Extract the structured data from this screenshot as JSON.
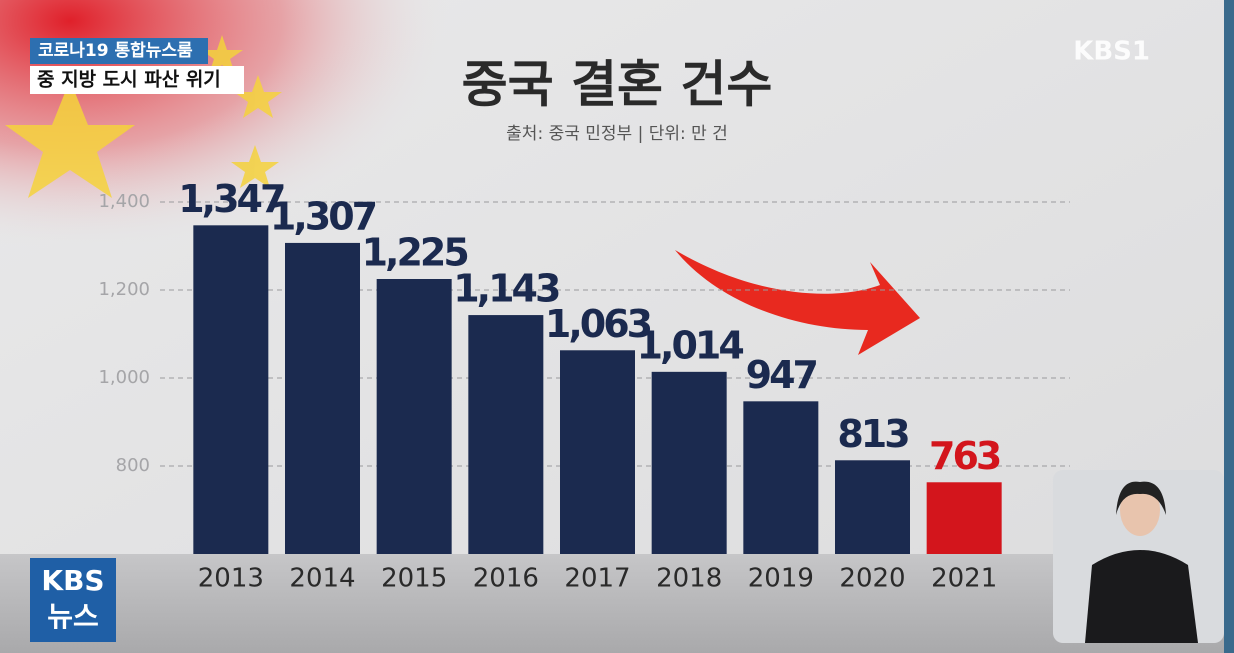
{
  "header": {
    "program": "코로나19 통합뉴스룸",
    "headline": "중 지방 도시 파산 위기",
    "channel": "KBS1"
  },
  "logo": {
    "line1": "KBS",
    "line2": "뉴스"
  },
  "chart_data": {
    "type": "bar",
    "title": "중국 결혼 건수",
    "subtitle": "출처: 중국 민정부 | 단위: 만 건",
    "categories": [
      "2013",
      "2014",
      "2015",
      "2016",
      "2017",
      "2018",
      "2019",
      "2020",
      "2021"
    ],
    "values": [
      1347,
      1307,
      1225,
      1143,
      1063,
      1014,
      947,
      813,
      763
    ],
    "value_labels": [
      "1,347",
      "1,307",
      "1,225",
      "1,143",
      "1,063",
      "1,014",
      "947",
      "813",
      "763"
    ],
    "colors": [
      "#1b2a4f",
      "#1b2a4f",
      "#1b2a4f",
      "#1b2a4f",
      "#1b2a4f",
      "#1b2a4f",
      "#1b2a4f",
      "#1b2a4f",
      "#d3151c"
    ],
    "ylim": [
      600,
      1400
    ],
    "yticks": [
      {
        "value": 800,
        "label": "800"
      },
      {
        "value": 1000,
        "label": "1,000"
      },
      {
        "value": 1200,
        "label": "1,200"
      },
      {
        "value": 1400,
        "label": "1,400"
      }
    ],
    "grid": true
  }
}
